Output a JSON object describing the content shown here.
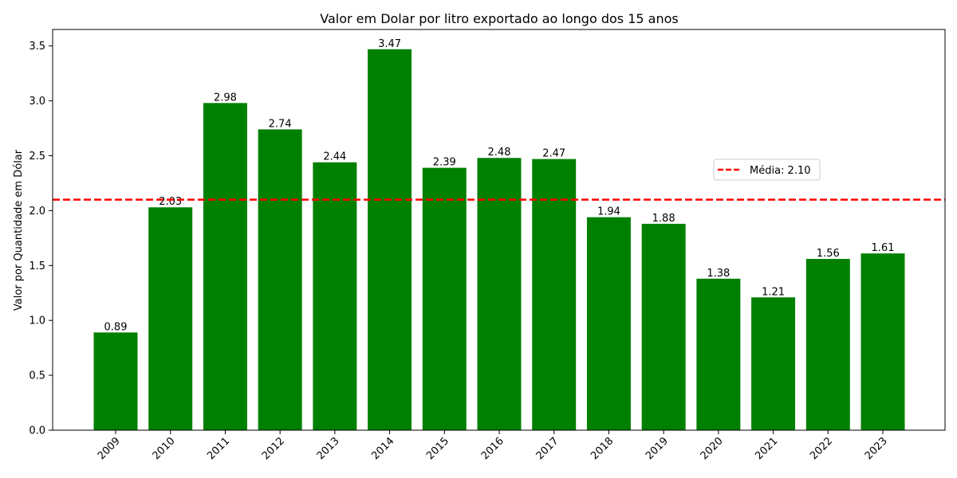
{
  "chart_data": {
    "type": "bar",
    "title": "Valor em Dolar por litro exportado ao longo dos 15 anos",
    "xlabel": "",
    "ylabel": "Valor por Quantidade em Dólar",
    "categories": [
      "2009",
      "2010",
      "2011",
      "2012",
      "2013",
      "2014",
      "2015",
      "2016",
      "2017",
      "2018",
      "2019",
      "2020",
      "2021",
      "2022",
      "2023"
    ],
    "values": [
      0.89,
      2.03,
      2.98,
      2.74,
      2.44,
      3.47,
      2.39,
      2.48,
      2.47,
      1.94,
      1.88,
      1.38,
      1.21,
      1.56,
      1.61
    ],
    "data_labels": [
      "0.89",
      "2.03",
      "2.98",
      "2.74",
      "2.44",
      "3.47",
      "2.39",
      "2.48",
      "2.47",
      "1.94",
      "1.88",
      "1.38",
      "1.21",
      "1.56",
      "1.61"
    ],
    "ylim": [
      0,
      3.65
    ],
    "yticks": [
      0.0,
      0.5,
      1.0,
      1.5,
      2.0,
      2.5,
      3.0,
      3.5
    ],
    "ytick_labels": [
      "0.0",
      "0.5",
      "1.0",
      "1.5",
      "2.0",
      "2.5",
      "3.0",
      "3.5"
    ],
    "grid": false,
    "bar_color": "#008000",
    "reference_line": {
      "value": 2.1,
      "label": "Média: 2.10",
      "color": "#ff0000",
      "style": "dashed"
    },
    "legend_placement": "center-right",
    "xtick_rotation": 45
  }
}
